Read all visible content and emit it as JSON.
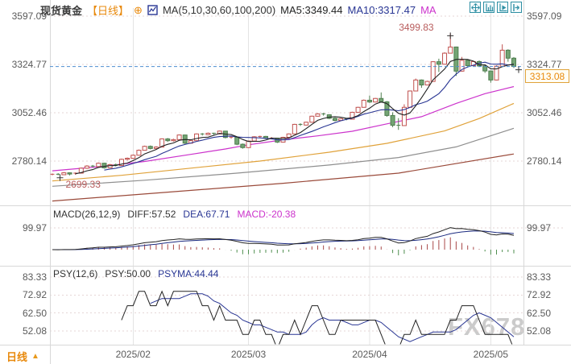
{
  "header": {
    "title": "现货黄金",
    "period": "【日线】",
    "add_overlay_glyph": "⊕",
    "ma_settings": "MA(5,10,30,60,100,200)",
    "ma5_readout": "MA5:3349.44",
    "ma10_readout": "MA10:3317.47",
    "ma_truncated": "MA"
  },
  "toolbar": {
    "buttons": [
      "pan-mode",
      "restore-scale",
      "auto-scroll",
      "jump-to-latest"
    ]
  },
  "price_tag": "3313.08",
  "annotations": {
    "high": "3499.83",
    "low": "2699.33"
  },
  "watermark": "FX678",
  "bottom_bar": {
    "tab": "日线",
    "tab_arrow": "▲"
  },
  "macd_pane": {
    "legend": {
      "name": "MACD(26,12,9)",
      "diff": "DIFF:57.52",
      "dea": "DEA:67.71",
      "macd": "MACD:-20.38"
    },
    "axis_labels": [
      "99.97"
    ],
    "axis_values": [
      99.97
    ]
  },
  "psy_pane": {
    "legend": {
      "name": "PSY(12,6)",
      "psy": "PSY:50.00",
      "psyma": "PSYMA:44.44"
    },
    "axis_labels": [
      "83.33",
      "72.92",
      "62.50",
      "52.08"
    ],
    "axis_values": [
      83.33,
      72.92,
      62.5,
      52.08
    ]
  },
  "main_axis": {
    "labels": [
      "3597.09",
      "3324.77",
      "3052.46",
      "2780.14"
    ],
    "values": [
      3597.09,
      3324.77,
      3052.46,
      2780.14
    ]
  },
  "chart_data": {
    "type": "candlestick",
    "title": "现货黄金 日线 (Spot Gold Daily)",
    "x_labels": [
      "2025/02",
      "2025/03",
      "2025/04",
      "2025/05"
    ],
    "month_indices": [
      14,
      34,
      55,
      76
    ],
    "ylim_main": [
      2530,
      3640
    ],
    "last_price": 3313.08,
    "high_annotation": {
      "index": 69,
      "price": 3499.83
    },
    "low_annotation": {
      "index": 3,
      "price": 2699.33
    },
    "candles": [
      [
        2702,
        2710,
        2700,
        2706
      ],
      [
        2706,
        2712,
        2700,
        2703
      ],
      [
        2703,
        2718,
        2701,
        2714
      ],
      [
        2714,
        2716,
        2699.33,
        2707
      ],
      [
        2707,
        2716,
        2703,
        2712
      ],
      [
        2712,
        2744,
        2710,
        2740
      ],
      [
        2740,
        2757,
        2736,
        2752
      ],
      [
        2752,
        2758,
        2744,
        2749
      ],
      [
        2749,
        2772,
        2746,
        2768
      ],
      [
        2768,
        2770,
        2738,
        2742
      ],
      [
        2742,
        2764,
        2740,
        2760
      ],
      [
        2760,
        2766,
        2750,
        2755
      ],
      [
        2755,
        2794,
        2753,
        2790
      ],
      [
        2790,
        2800,
        2784,
        2796
      ],
      [
        2796,
        2817,
        2794,
        2813
      ],
      [
        2813,
        2845,
        2811,
        2841
      ],
      [
        2841,
        2867,
        2839,
        2863
      ],
      [
        2863,
        2868,
        2846,
        2851
      ],
      [
        2851,
        2864,
        2845,
        2859
      ],
      [
        2859,
        2908,
        2857,
        2905
      ],
      [
        2905,
        2910,
        2888,
        2895
      ],
      [
        2895,
        2906,
        2890,
        2901
      ],
      [
        2901,
        2930,
        2899,
        2927
      ],
      [
        2927,
        2929,
        2876,
        2881
      ],
      [
        2881,
        2898,
        2878,
        2895
      ],
      [
        2895,
        2936,
        2893,
        2933
      ],
      [
        2933,
        2938,
        2924,
        2929
      ],
      [
        2929,
        2941,
        2926,
        2937
      ],
      [
        2937,
        2940,
        2928,
        2933
      ],
      [
        2933,
        2952,
        2931,
        2949
      ],
      [
        2949,
        2950,
        2908,
        2913
      ],
      [
        2913,
        2920,
        2906,
        2915
      ],
      [
        2915,
        2917,
        2870,
        2875
      ],
      [
        2875,
        2879,
        2850,
        2856
      ],
      [
        2856,
        2896,
        2854,
        2893
      ],
      [
        2893,
        2920,
        2891,
        2917
      ],
      [
        2917,
        2923,
        2909,
        2919
      ],
      [
        2919,
        2922,
        2904,
        2909
      ],
      [
        2909,
        2916,
        2902,
        2909
      ],
      [
        2909,
        2911,
        2882,
        2887
      ],
      [
        2887,
        2917,
        2885,
        2914
      ],
      [
        2914,
        2936,
        2912,
        2933
      ],
      [
        2933,
        2990,
        2931,
        2987
      ],
      [
        2987,
        2993,
        2978,
        2983
      ],
      [
        2983,
        3002,
        2981,
        2999
      ],
      [
        2999,
        3036,
        2997,
        3033
      ],
      [
        3033,
        3050,
        3031,
        3046
      ],
      [
        3046,
        3052,
        3036,
        3041
      ],
      [
        3041,
        3044,
        3016,
        3021
      ],
      [
        3021,
        3026,
        3004,
        3009
      ],
      [
        3009,
        3022,
        3007,
        3019
      ],
      [
        3019,
        3023,
        3010,
        3016
      ],
      [
        3016,
        3058,
        3014,
        3055
      ],
      [
        3055,
        3086,
        3053,
        3083
      ],
      [
        3083,
        3127,
        3081,
        3123
      ],
      [
        3123,
        3149,
        3108,
        3113
      ],
      [
        3113,
        3136,
        3111,
        3133
      ],
      [
        3133,
        3167,
        3109,
        3114
      ],
      [
        3114,
        3118,
        3030,
        3037
      ],
      [
        3037,
        3055,
        2971,
        2982
      ],
      [
        2982,
        3022,
        2956,
        2980
      ],
      [
        2980,
        3100,
        2978,
        3083
      ],
      [
        3083,
        3178,
        3081,
        3175
      ],
      [
        3175,
        3245,
        3173,
        3237
      ],
      [
        3237,
        3240,
        3193,
        3209
      ],
      [
        3209,
        3233,
        3207,
        3229
      ],
      [
        3229,
        3343,
        3227,
        3340
      ],
      [
        3340,
        3357,
        3282,
        3326
      ],
      [
        3326,
        3393,
        3324,
        3388
      ],
      [
        3388,
        3499.83,
        3386,
        3423
      ],
      [
        3423,
        3425,
        3260,
        3287
      ],
      [
        3287,
        3367,
        3285,
        3348
      ],
      [
        3348,
        3352,
        3307,
        3318
      ],
      [
        3318,
        3345,
        3316,
        3341
      ],
      [
        3341,
        3347,
        3310,
        3316
      ],
      [
        3316,
        3324,
        3277,
        3288
      ],
      [
        3288,
        3290,
        3222,
        3237
      ],
      [
        3237,
        3320,
        3235,
        3315
      ],
      [
        3315,
        3438,
        3313,
        3405
      ],
      [
        3405,
        3410,
        3340,
        3360
      ],
      [
        3360,
        3366,
        3305,
        3313.08
      ]
    ],
    "ma_overlays": [
      {
        "name": "MA30",
        "color": "#cc33cc",
        "points": [
          [
            0,
            2725
          ],
          [
            8,
            2748
          ],
          [
            16,
            2778
          ],
          [
            24,
            2818
          ],
          [
            30,
            2848
          ],
          [
            34,
            2872
          ],
          [
            40,
            2900
          ],
          [
            46,
            2922
          ],
          [
            52,
            2948
          ],
          [
            58,
            2990
          ],
          [
            64,
            3030
          ],
          [
            70,
            3105
          ],
          [
            75,
            3160
          ],
          [
            80,
            3200
          ]
        ]
      },
      {
        "name": "MA60",
        "color": "#e0a23a",
        "points": [
          [
            0,
            2668
          ],
          [
            12,
            2700
          ],
          [
            24,
            2740
          ],
          [
            36,
            2780
          ],
          [
            48,
            2830
          ],
          [
            58,
            2880
          ],
          [
            68,
            2950
          ],
          [
            74,
            3020
          ],
          [
            80,
            3105
          ]
        ]
      },
      {
        "name": "MA100",
        "color": "#8f8f8f",
        "points": [
          [
            0,
            2638
          ],
          [
            16,
            2672
          ],
          [
            32,
            2712
          ],
          [
            48,
            2758
          ],
          [
            60,
            2800
          ],
          [
            70,
            2860
          ],
          [
            80,
            2965
          ]
        ]
      },
      {
        "name": "MA200",
        "color": "#9a4a3a",
        "points": [
          [
            0,
            2555
          ],
          [
            20,
            2605
          ],
          [
            40,
            2655
          ],
          [
            60,
            2712
          ],
          [
            80,
            2820
          ]
        ]
      }
    ],
    "colors": {
      "up": "#c0504d",
      "up_fill": "#ffffff",
      "down": "#4e7e4e",
      "down_fill": "#74a474",
      "ma5": "#222222",
      "ma10": "#283593",
      "diff": "#222222",
      "dea": "#1b2a80",
      "macd_pos": "#a84848",
      "macd_neg": "#4e8e4e",
      "psy": "#222222",
      "psyma": "#283593",
      "last_price_line": "#4f8fd0",
      "grid": "#e6d6d6",
      "vgrid": "#e4e4e4",
      "border": "#d8d8d8",
      "axis_text": "#5a5a5a"
    }
  }
}
